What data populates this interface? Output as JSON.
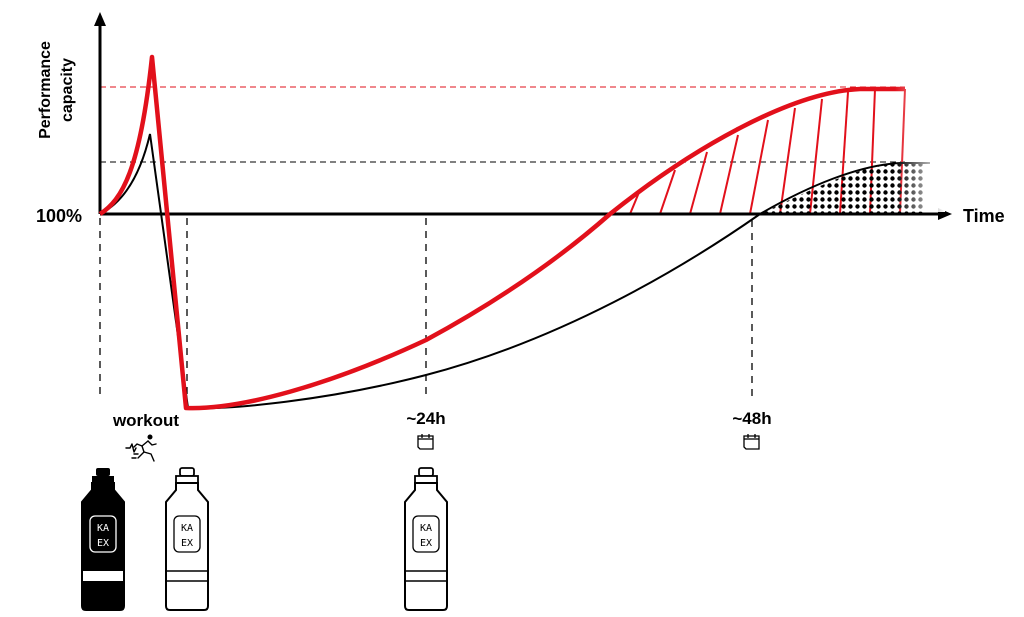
{
  "axes": {
    "y_label_line1": "Performance",
    "y_label_line2": "capacity",
    "x_label": "Time",
    "baseline_label": "100%"
  },
  "timeline": {
    "workout_label": "workout",
    "mark_24h": "~24h",
    "mark_48h": "~48h"
  },
  "bottle_labels": {
    "line1": "KA",
    "line2": "EX"
  },
  "colors": {
    "accent_red": "#e2101b",
    "black": "#000000",
    "white": "#ffffff"
  },
  "icons": [
    "runner-icon",
    "calendar-icon",
    "calendar-icon",
    "bottle-icon"
  ]
}
